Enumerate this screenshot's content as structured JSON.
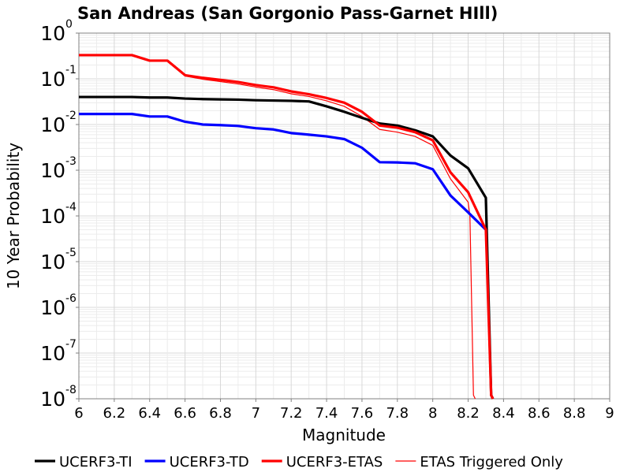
{
  "chart_data": {
    "type": "line",
    "title": "San Andreas (San Gorgonio Pass-Garnet HIll)",
    "xlabel": "Magnitude",
    "ylabel": "10 Year Probability",
    "xlim": [
      6,
      9
    ],
    "ylim": [
      1e-08,
      1
    ],
    "yscale": "log",
    "x_ticks": [
      "6",
      "6.2",
      "6.4",
      "6.6",
      "6.8",
      "7",
      "7.2",
      "7.4",
      "7.6",
      "7.8",
      "8",
      "8.2",
      "8.4",
      "8.6",
      "8.8",
      "9"
    ],
    "y_ticks": [
      {
        "base": "10",
        "exp": "-8"
      },
      {
        "base": "10",
        "exp": "-7"
      },
      {
        "base": "10",
        "exp": "-6"
      },
      {
        "base": "10",
        "exp": "-5"
      },
      {
        "base": "10",
        "exp": "-4"
      },
      {
        "base": "10",
        "exp": "-3"
      },
      {
        "base": "10",
        "exp": "-2"
      },
      {
        "base": "10",
        "exp": "-1"
      },
      {
        "base": "10",
        "exp": "0"
      }
    ],
    "grid": true,
    "legend_position": "bottom",
    "series": [
      {
        "name": "UCERF3-TI",
        "color": "#000000",
        "x": [
          6.0,
          6.1,
          6.2,
          6.3,
          6.4,
          6.5,
          6.6,
          6.7,
          6.8,
          6.9,
          7.0,
          7.1,
          7.2,
          7.3,
          7.4,
          7.5,
          7.6,
          7.7,
          7.8,
          7.9,
          8.0,
          8.1,
          8.2,
          8.3,
          8.33,
          8.34
        ],
        "y": [
          0.04,
          0.04,
          0.04,
          0.04,
          0.039,
          0.039,
          0.037,
          0.036,
          0.0355,
          0.035,
          0.034,
          0.0335,
          0.033,
          0.032,
          0.025,
          0.019,
          0.014,
          0.0105,
          0.0095,
          0.0075,
          0.0055,
          0.0021,
          0.0011,
          0.00025,
          1.2e-08,
          1e-08
        ]
      },
      {
        "name": "UCERF3-TD",
        "color": "#0000ff",
        "x": [
          6.0,
          6.1,
          6.2,
          6.3,
          6.4,
          6.5,
          6.6,
          6.7,
          6.8,
          6.9,
          7.0,
          7.1,
          7.2,
          7.3,
          7.4,
          7.5,
          7.6,
          7.7,
          7.8,
          7.9,
          8.0,
          8.1,
          8.2,
          8.3
        ],
        "y": [
          0.017,
          0.017,
          0.017,
          0.017,
          0.015,
          0.015,
          0.0115,
          0.01,
          0.0097,
          0.0093,
          0.0083,
          0.0078,
          0.0065,
          0.006,
          0.0055,
          0.0048,
          0.0031,
          0.0015,
          0.00148,
          0.00142,
          0.00105,
          0.00028,
          0.00012,
          5e-05
        ]
      },
      {
        "name": "UCERF3-ETAS",
        "color": "#ff0000",
        "x": [
          6.0,
          6.1,
          6.2,
          6.3,
          6.4,
          6.5,
          6.6,
          6.7,
          6.8,
          6.9,
          7.0,
          7.1,
          7.2,
          7.3,
          7.4,
          7.5,
          7.6,
          7.7,
          7.8,
          7.9,
          8.0,
          8.1,
          8.2,
          8.3,
          8.33,
          8.34
        ],
        "y": [
          0.33,
          0.33,
          0.33,
          0.33,
          0.25,
          0.25,
          0.12,
          0.105,
          0.095,
          0.085,
          0.073,
          0.065,
          0.053,
          0.046,
          0.038,
          0.03,
          0.019,
          0.0095,
          0.0085,
          0.0068,
          0.0045,
          0.0009,
          0.00033,
          5e-05,
          1.2e-08,
          1e-08
        ]
      },
      {
        "name": "ETAS Triggered Only",
        "color": "#ff0000",
        "x": [
          6.6,
          6.7,
          6.8,
          6.9,
          7.0,
          7.1,
          7.2,
          7.3,
          7.4,
          7.5,
          7.6,
          7.7,
          7.8,
          7.9,
          8.0,
          8.1,
          8.2,
          8.21,
          8.23,
          8.24
        ],
        "y": [
          0.115,
          0.098,
          0.087,
          0.077,
          0.066,
          0.058,
          0.047,
          0.041,
          0.033,
          0.025,
          0.015,
          0.0078,
          0.0068,
          0.0055,
          0.0035,
          0.00065,
          0.0002,
          0.0001,
          1.2e-08,
          1e-08
        ]
      }
    ]
  }
}
